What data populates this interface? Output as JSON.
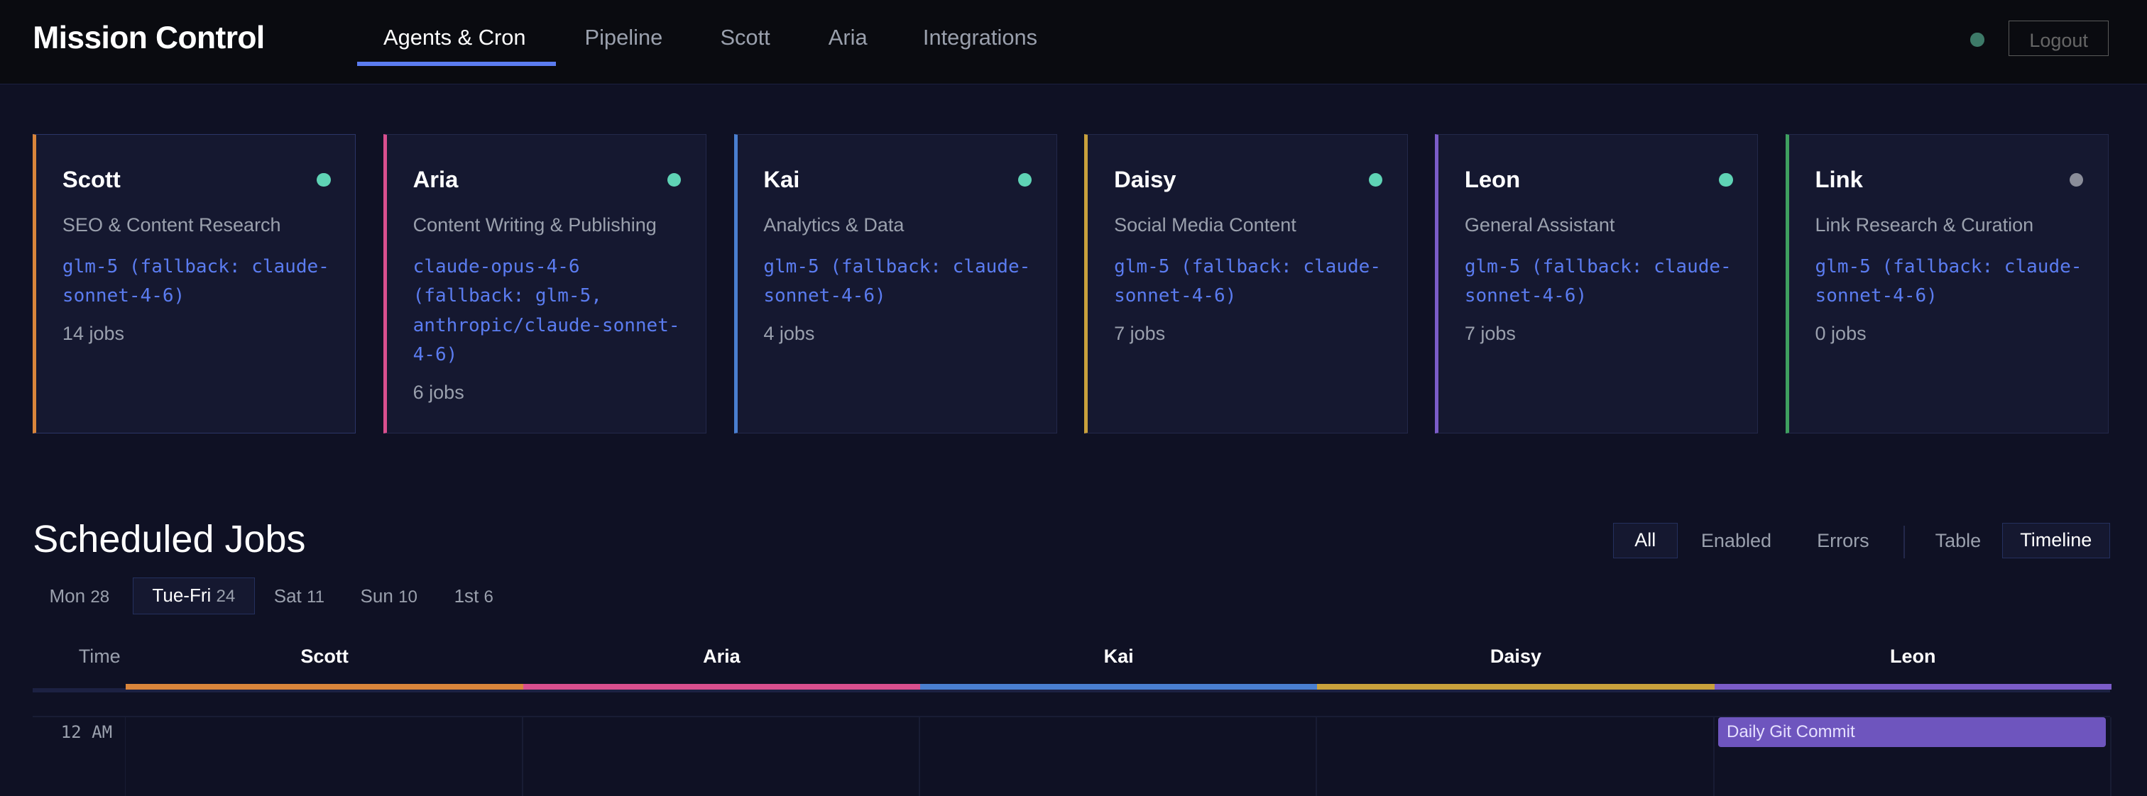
{
  "header": {
    "title": "Mission Control",
    "nav": [
      "Agents & Cron",
      "Pipeline",
      "Scott",
      "Aria",
      "Integrations"
    ],
    "active_nav": "Agents & Cron",
    "logout_label": "Logout",
    "status_color": "#3d7a68"
  },
  "agents": [
    {
      "name": "Scott",
      "desc": "SEO & Content Research",
      "model": "glm-5 (fallback: claude-sonnet-4-6)",
      "jobs": "14 jobs",
      "color": "#d9853b",
      "status": "online"
    },
    {
      "name": "Aria",
      "desc": "Content Writing & Publishing",
      "model": "claude-opus-4-6 (fallback: glm-5, anthropic/claude-sonnet-4-6)",
      "jobs": "6 jobs",
      "color": "#d94f8e",
      "status": "online"
    },
    {
      "name": "Kai",
      "desc": "Analytics & Data",
      "model": "glm-5 (fallback: claude-sonnet-4-6)",
      "jobs": "4 jobs",
      "color": "#4a7fd0",
      "status": "online"
    },
    {
      "name": "Daisy",
      "desc": "Social Media Content",
      "model": "glm-5 (fallback: claude-sonnet-4-6)",
      "jobs": "7 jobs",
      "color": "#c9a13c",
      "status": "online"
    },
    {
      "name": "Leon",
      "desc": "General Assistant",
      "model": "glm-5 (fallback: claude-sonnet-4-6)",
      "jobs": "7 jobs",
      "color": "#7b5cc8",
      "status": "online"
    },
    {
      "name": "Link",
      "desc": "Link Research & Curation",
      "model": "glm-5 (fallback: claude-sonnet-4-6)",
      "jobs": "0 jobs",
      "color": "#3fa060",
      "status": "offline"
    }
  ],
  "scheduled": {
    "title": "Scheduled Jobs",
    "filters": [
      "All",
      "Enabled",
      "Errors"
    ],
    "active_filter": "All",
    "views": [
      "Table",
      "Timeline"
    ],
    "active_view": "Timeline",
    "days": [
      {
        "label": "Mon",
        "count": "28"
      },
      {
        "label": "Tue-Fri",
        "count": "24"
      },
      {
        "label": "Sat",
        "count": "11"
      },
      {
        "label": "Sun",
        "count": "10"
      },
      {
        "label": "1st",
        "count": "6"
      }
    ],
    "active_day": "Tue-Fri",
    "time_label": "Time",
    "columns": [
      "Scott",
      "Aria",
      "Kai",
      "Daisy",
      "Leon"
    ],
    "hours": [
      "12 AM"
    ],
    "events": [
      {
        "agent": "Leon",
        "hour": "12 AM",
        "label": "Daily Git Commit"
      }
    ]
  }
}
